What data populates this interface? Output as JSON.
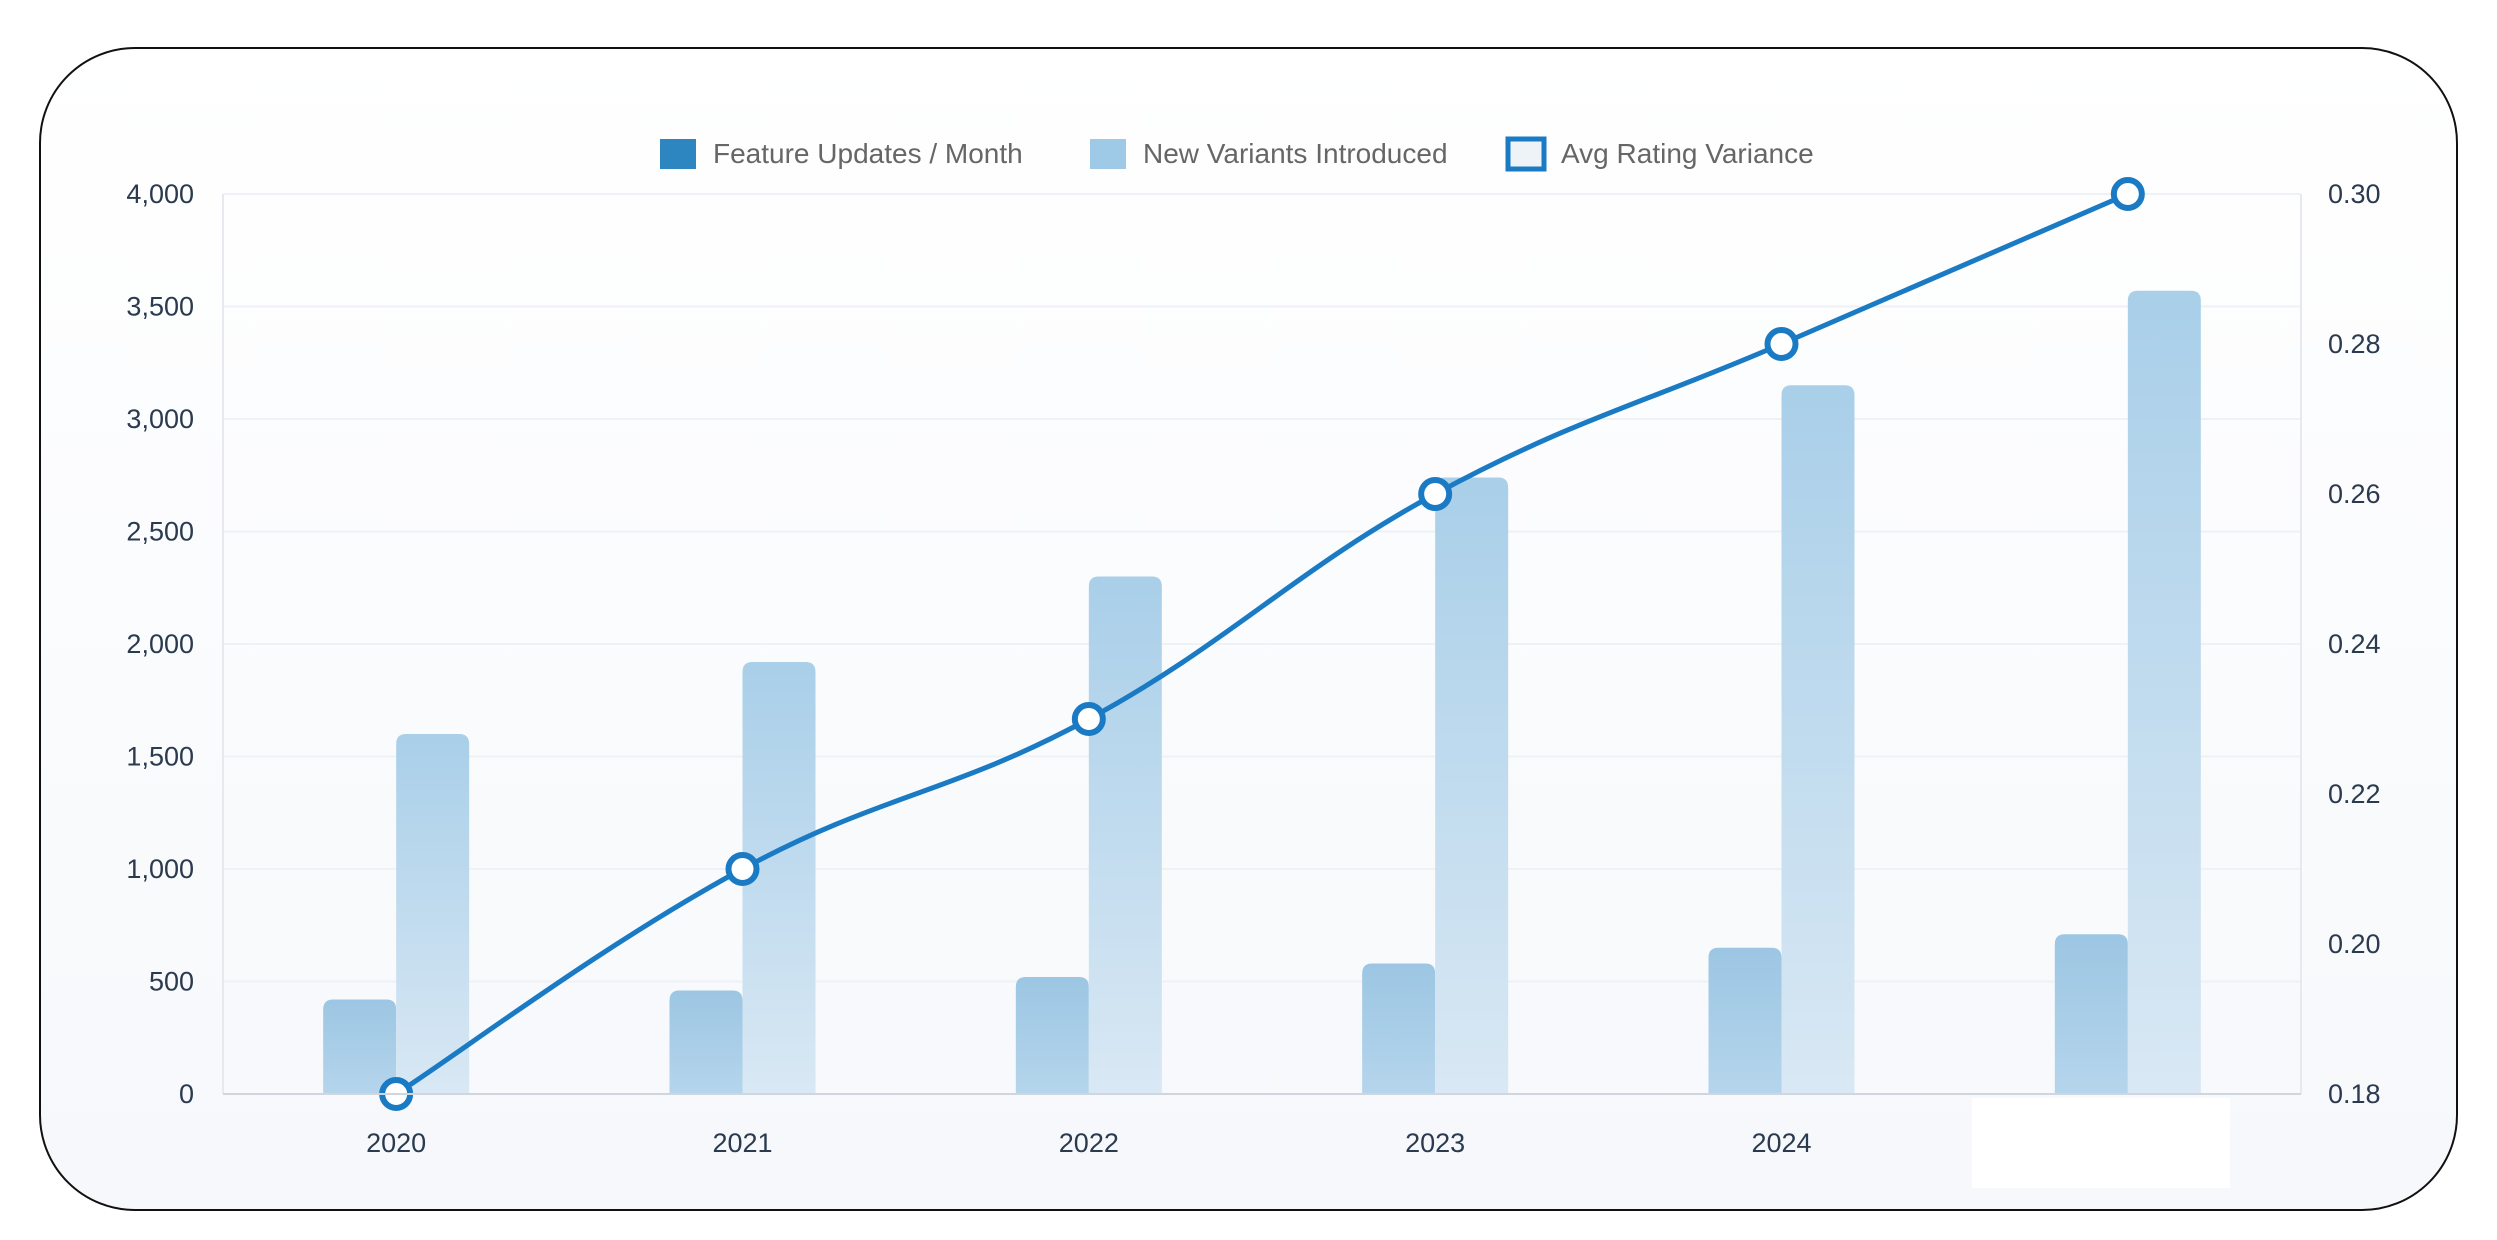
{
  "chart_data": {
    "type": "bar",
    "categories": [
      "2020",
      "2021",
      "2022",
      "2023",
      "2024",
      ""
    ],
    "series": [
      {
        "name": "Feature Updates / Month",
        "type": "bar",
        "axis": "left",
        "color": "#2e86c1",
        "values": [
          420,
          460,
          520,
          580,
          650,
          710
        ]
      },
      {
        "name": "New Variants Introduced",
        "type": "bar",
        "axis": "left",
        "color": "#9ecae7",
        "values": [
          1600,
          1920,
          2300,
          2740,
          3150,
          3570
        ]
      },
      {
        "name": "Avg Rating Variance",
        "type": "line",
        "axis": "right",
        "color": "#1a7bc4",
        "values": [
          0.18,
          0.21,
          0.23,
          0.26,
          0.28,
          0.3
        ]
      }
    ],
    "y_left": {
      "min": 0,
      "max": 4000,
      "ticks": [
        "0",
        "500",
        "1,000",
        "1,500",
        "2,000",
        "2,500",
        "3,000",
        "3,500",
        "4,000"
      ]
    },
    "y_right": {
      "min": 0.18,
      "max": 0.3,
      "ticks": [
        "0.18",
        "0.20",
        "0.22",
        "0.24",
        "0.26",
        "0.28",
        "0.30"
      ]
    },
    "grid": true,
    "legend_position": "top",
    "title": "",
    "xlabel": "",
    "ylabel": ""
  }
}
